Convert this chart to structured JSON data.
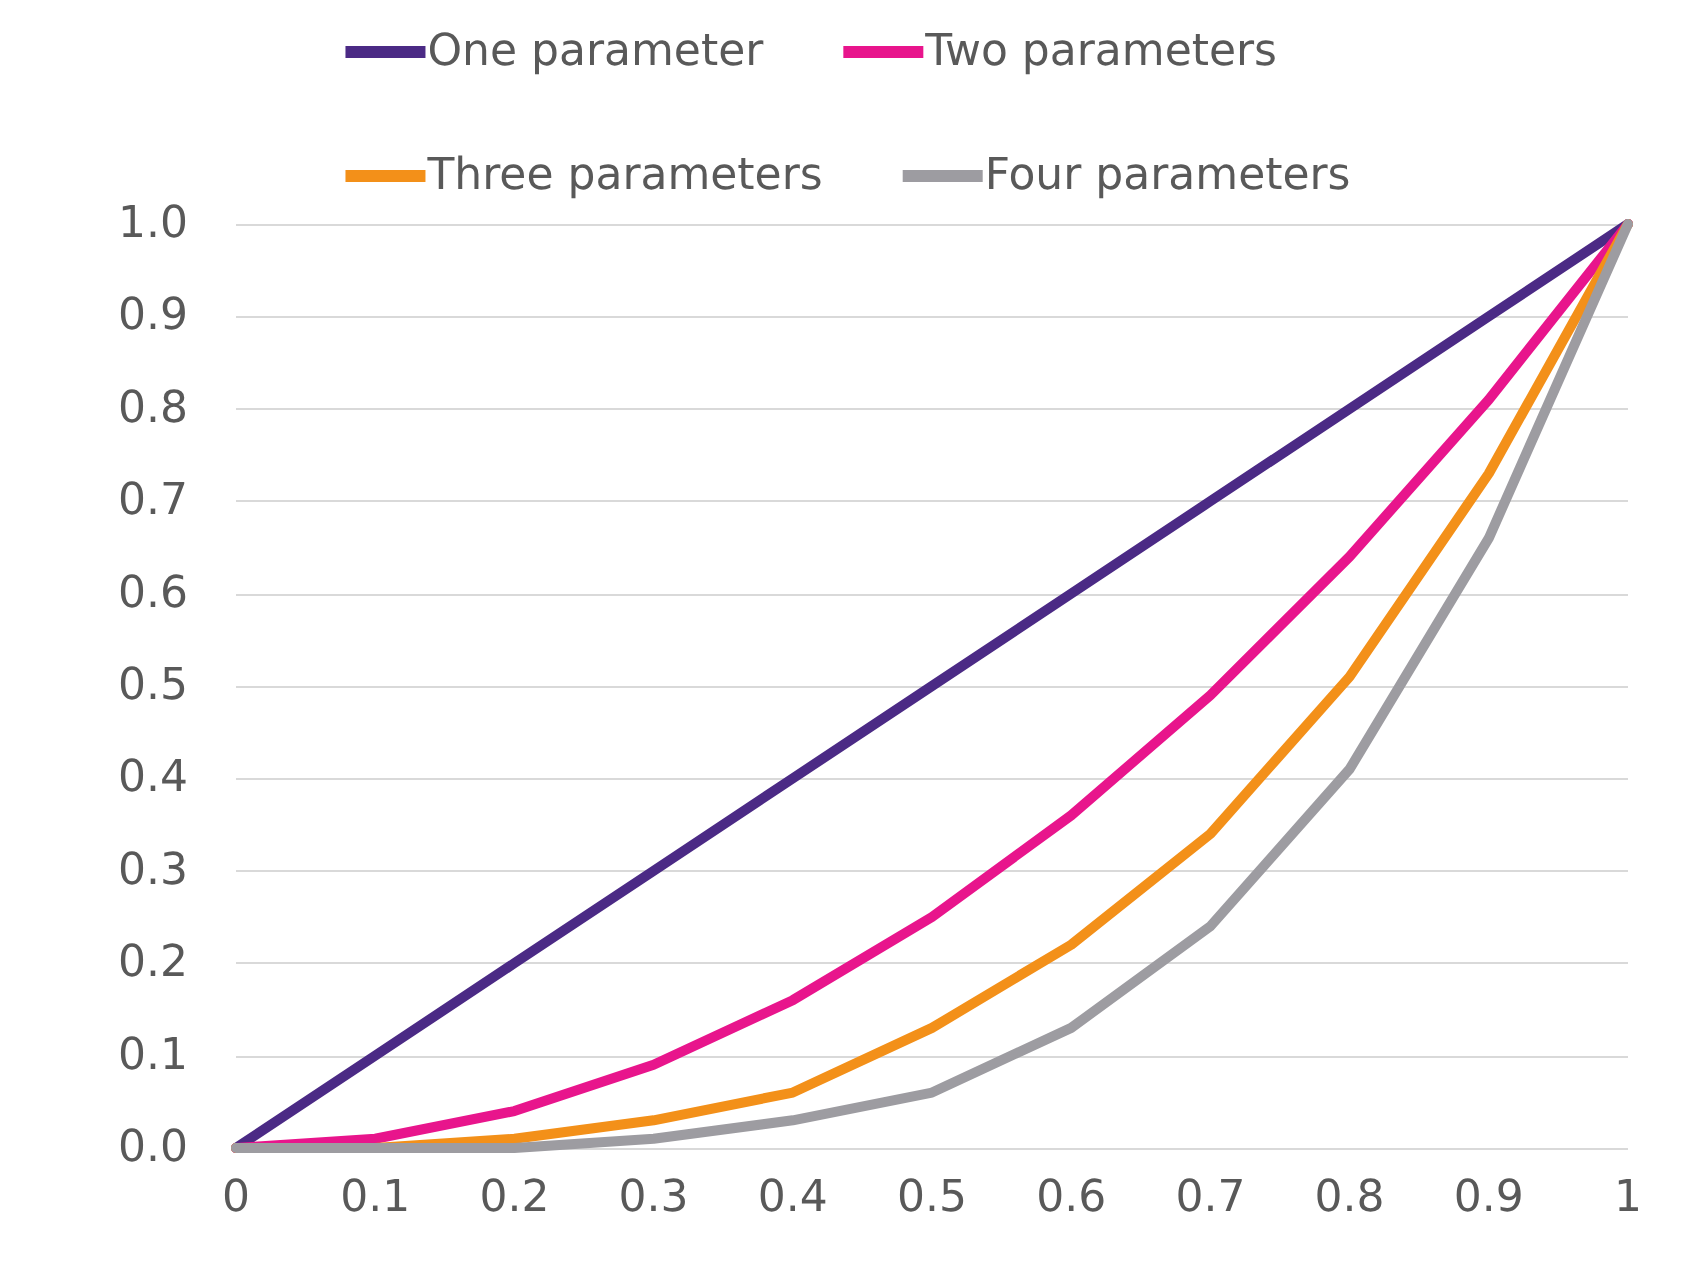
{
  "chart_data": {
    "type": "line",
    "categories": [
      "0",
      "0.1",
      "0.2",
      "0.3",
      "0.4",
      "0.5",
      "0.6",
      "0.7",
      "0.8",
      "0.9",
      "1"
    ],
    "ylim": [
      0,
      1
    ],
    "yticks": [
      {
        "value": 0,
        "label": "0.0"
      },
      {
        "value": 0.1,
        "label": "0.1"
      },
      {
        "value": 0.2,
        "label": "0.2"
      },
      {
        "value": 0.3,
        "label": "0.3"
      },
      {
        "value": 0.4,
        "label": "0.4"
      },
      {
        "value": 0.5,
        "label": "0.5"
      },
      {
        "value": 0.6,
        "label": "0.6"
      },
      {
        "value": 0.7,
        "label": "0.7"
      },
      {
        "value": 0.8,
        "label": "0.8"
      },
      {
        "value": 0.9,
        "label": "0.9"
      },
      {
        "value": 1,
        "label": "1.0"
      }
    ],
    "grid": "y",
    "legend": "top",
    "marker": "none",
    "line_style": "solid",
    "series": [
      {
        "name": "One parameter",
        "color": "#4b2a85",
        "values": [
          0,
          0.1,
          0.2,
          0.3,
          0.4,
          0.5,
          0.6,
          0.7,
          0.8,
          0.9,
          1
        ]
      },
      {
        "name": "Two parameters",
        "color": "#e8158c",
        "values": [
          0,
          0.01,
          0.04,
          0.09,
          0.16,
          0.25,
          0.36,
          0.49,
          0.64,
          0.81,
          1
        ]
      },
      {
        "name": "Three parameters",
        "color": "#f39019",
        "values": [
          0,
          0,
          0.01,
          0.03,
          0.06,
          0.13,
          0.22,
          0.34,
          0.51,
          0.73,
          1
        ]
      },
      {
        "name": "Four parameters",
        "color": "#9d9ca1",
        "values": [
          0,
          0,
          0,
          0.01,
          0.03,
          0.06,
          0.13,
          0.24,
          0.41,
          0.66,
          1
        ]
      }
    ]
  }
}
